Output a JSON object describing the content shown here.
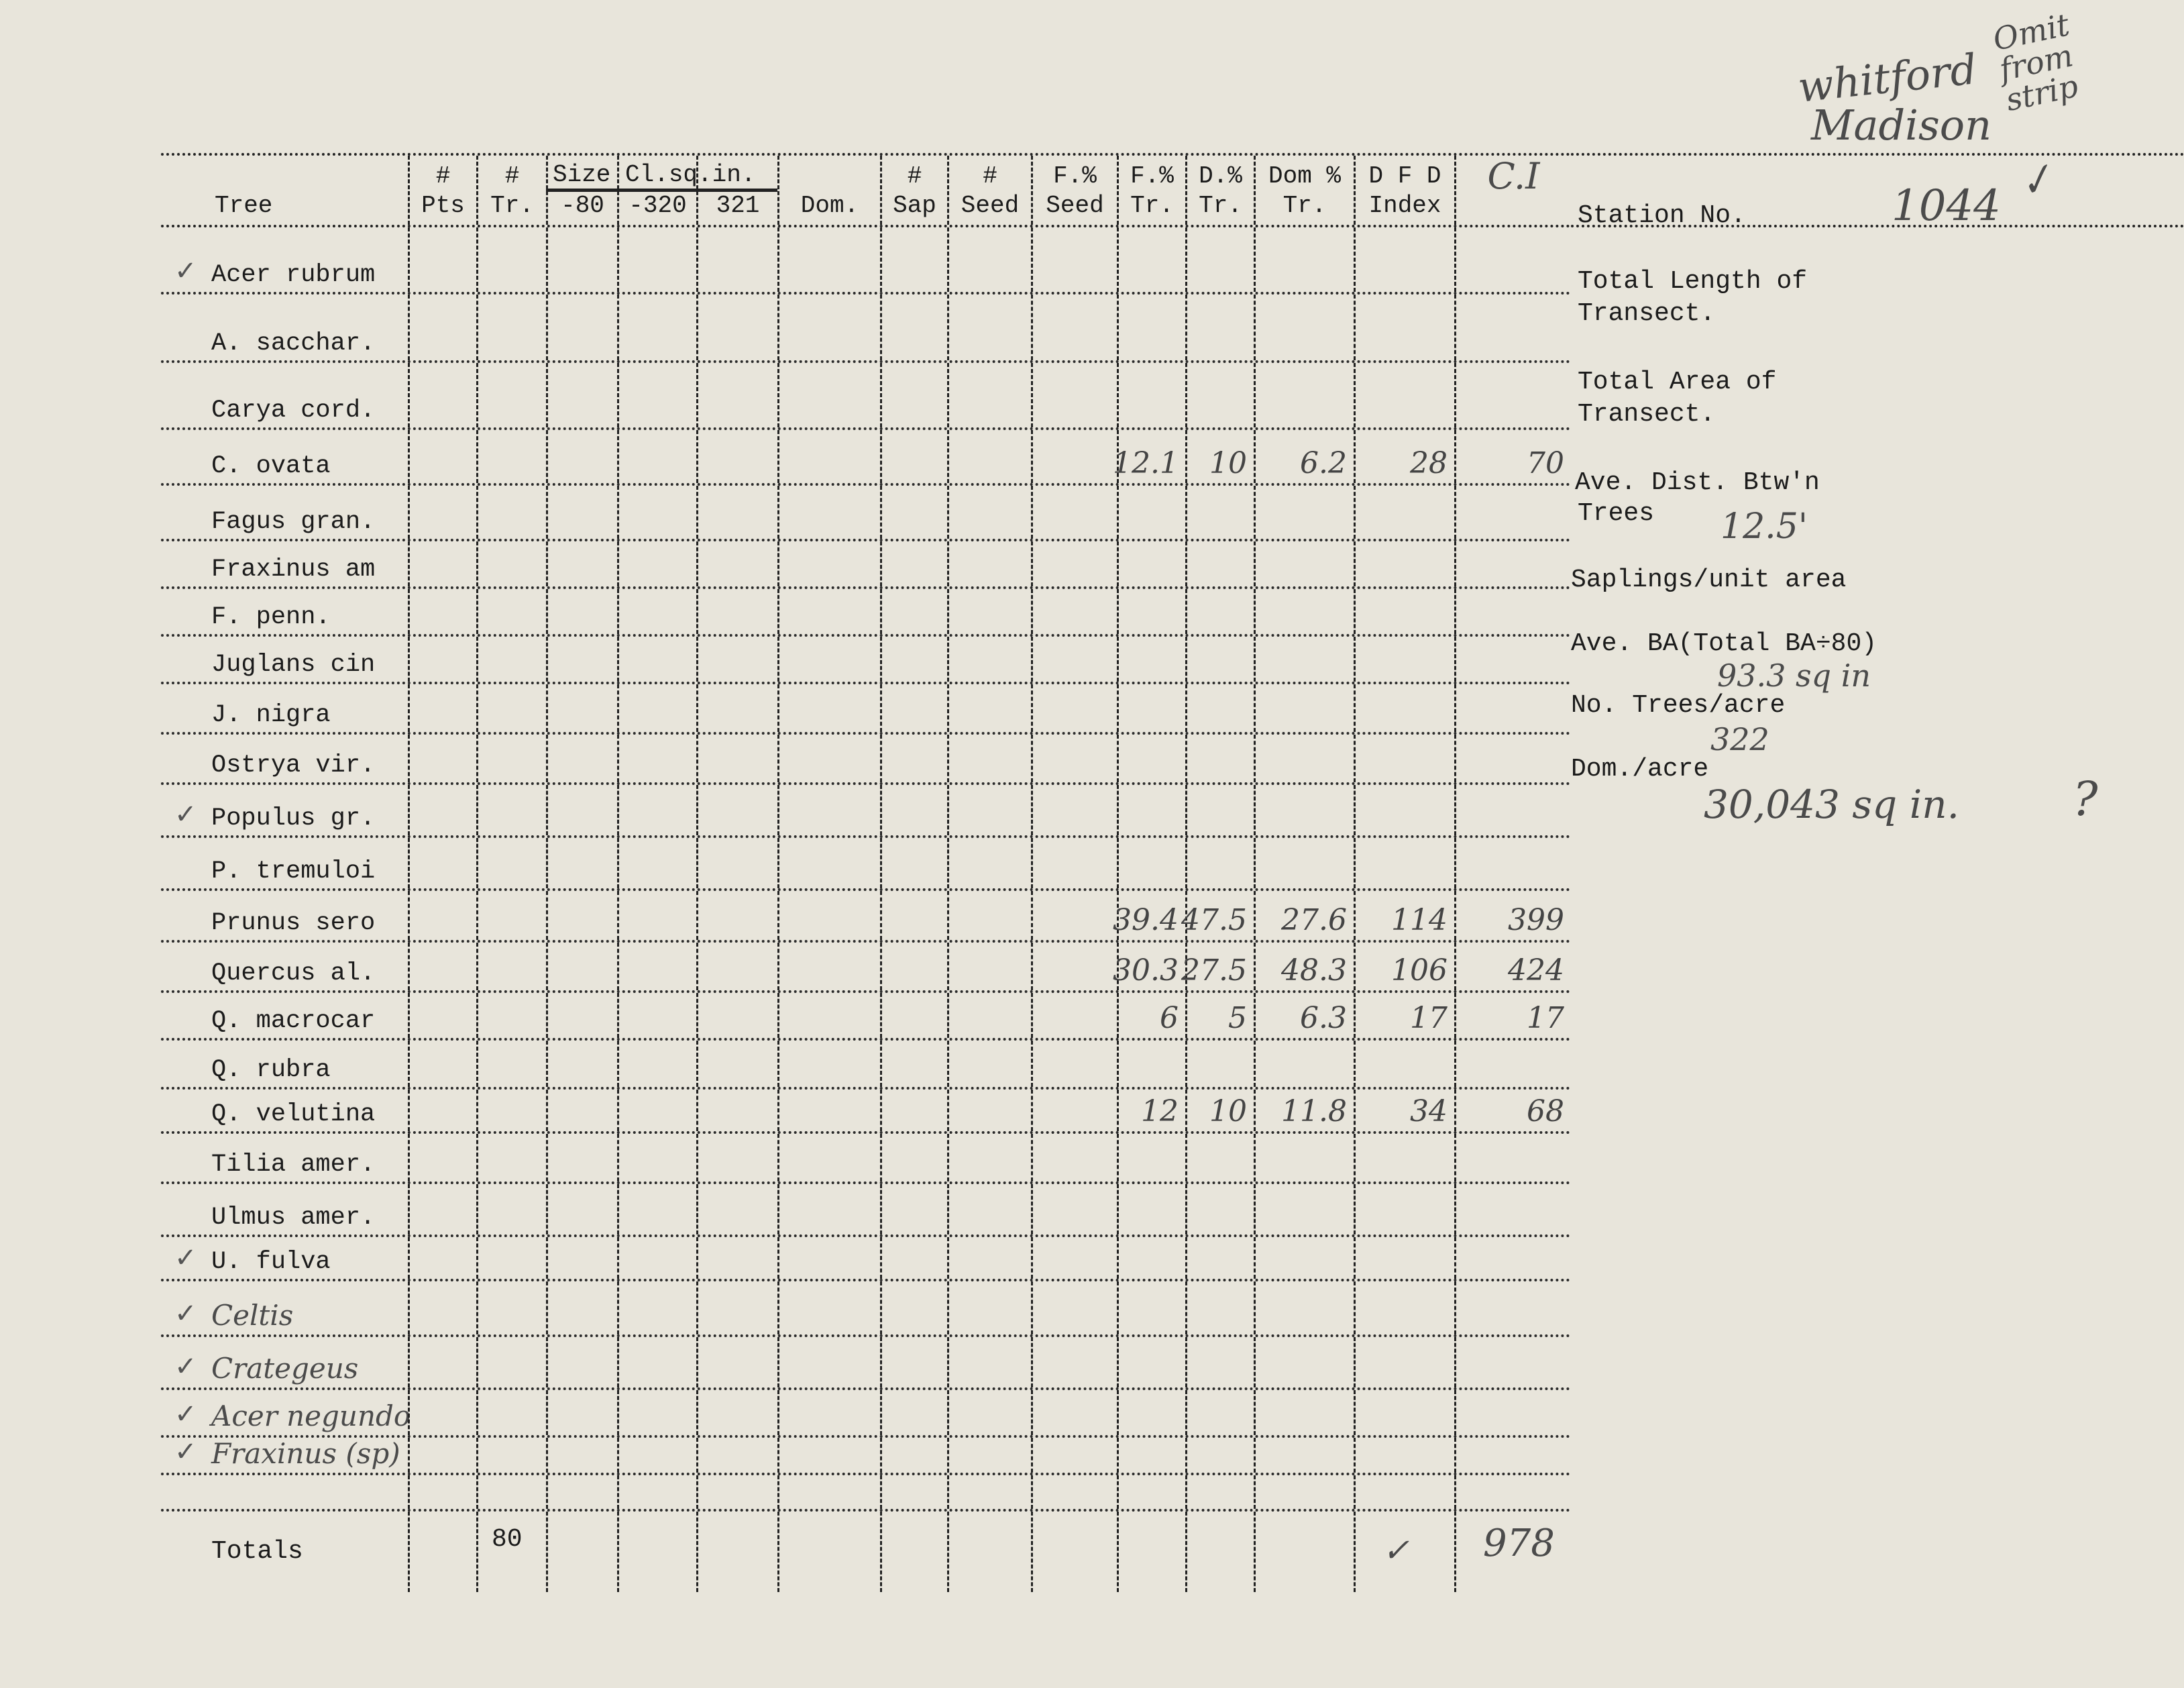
{
  "header_notes": {
    "location_line1": "whitford",
    "location_line2": "Madison",
    "omit_note": "Omit from strip"
  },
  "columns": [
    {
      "key": "tree",
      "line1": "",
      "line2": "Tree"
    },
    {
      "key": "pts",
      "line1": "#",
      "line2": "Pts"
    },
    {
      "key": "tr",
      "line1": "#",
      "line2": "Tr."
    },
    {
      "key": "size80",
      "line1": "",
      "line2": "-80"
    },
    {
      "key": "size320",
      "line1": "",
      "line2": "-320"
    },
    {
      "key": "size321",
      "line1": "",
      "line2": "321"
    },
    {
      "key": "dom",
      "line1": "",
      "line2": "Dom."
    },
    {
      "key": "sap",
      "line1": "#",
      "line2": "Sap"
    },
    {
      "key": "seed",
      "line1": "#",
      "line2": "Seed"
    },
    {
      "key": "fseed",
      "line1": "F.%",
      "line2": "Seed"
    },
    {
      "key": "ftr",
      "line1": "F.%",
      "line2": "Tr."
    },
    {
      "key": "dtr",
      "line1": "D.%",
      "line2": "Tr."
    },
    {
      "key": "domtr",
      "line1": "Dom %",
      "line2": "Tr."
    },
    {
      "key": "dfd",
      "line1": "D F D",
      "line2": "Index"
    },
    {
      "key": "ci",
      "line1": "C.I",
      "line2": ""
    }
  ],
  "size_class_label": "Size Cl.sq.in.",
  "rows": [
    {
      "tree": "Acer rubrum",
      "checked": true
    },
    {
      "tree": "A. sacchar."
    },
    {
      "tree": "Carya cord."
    },
    {
      "tree": "C. ovata",
      "ftr": "12.1",
      "dtr": "10",
      "domtr": "6.2",
      "dfd": "28",
      "ci": "70"
    },
    {
      "tree": "Fagus gran."
    },
    {
      "tree": "Fraxinus am"
    },
    {
      "tree": "F. penn."
    },
    {
      "tree": "Juglans cin"
    },
    {
      "tree": "J. nigra"
    },
    {
      "tree": "Ostrya vir."
    },
    {
      "tree": "Populus gr.",
      "checked": true
    },
    {
      "tree": "P. tremuloi"
    },
    {
      "tree": "Prunus sero",
      "ftr": "39.4",
      "dtr": "47.5",
      "domtr": "27.6",
      "dfd": "114",
      "ci": "399"
    },
    {
      "tree": "Quercus al.",
      "ftr": "30.3",
      "dtr": "27.5",
      "domtr": "48.3",
      "dfd": "106",
      "ci": "424"
    },
    {
      "tree": "Q. macrocar",
      "ftr": "6",
      "dtr": "5",
      "domtr": "6.3",
      "dfd": "17",
      "ci": "17"
    },
    {
      "tree": "Q. rubra"
    },
    {
      "tree": "Q. velutina",
      "ftr": "12",
      "dtr": "10",
      "domtr": "11.8",
      "dfd": "34",
      "ci": "68"
    },
    {
      "tree": "Tilia amer."
    },
    {
      "tree": "Ulmus amer."
    },
    {
      "tree": "U. fulva",
      "checked": true
    },
    {
      "tree": "Celtis",
      "checked": true,
      "handwritten": true
    },
    {
      "tree": "Crategeus",
      "checked": true,
      "handwritten": true
    },
    {
      "tree": "Acer negundo",
      "checked": true,
      "handwritten": true
    },
    {
      "tree": "Fraxinus (sp)",
      "checked": true,
      "handwritten": true
    },
    {
      "tree": ""
    }
  ],
  "totals": {
    "label": "Totals",
    "tr": "80",
    "dfd_check": "✓",
    "ci": "978"
  },
  "summary": {
    "station_label": "Station No.",
    "station_value": "1044",
    "total_length_label_1": "Total Length of",
    "total_length_label_2": "Transect.",
    "total_area_label_1": "Total Area of",
    "total_area_label_2": "Transect.",
    "ave_dist_label_1": "Ave. Dist. Btw'n",
    "ave_dist_label_2": "Trees",
    "ave_dist_value": "12.5'",
    "saplings_label": "Saplings/unit area",
    "ave_ba_label": "Ave. BA(Total BA÷80)",
    "ave_ba_value": "93.3 sq in",
    "trees_acre_label": "No. Trees/acre",
    "trees_acre_value": "322",
    "dom_acre_label": "Dom./acre",
    "dom_acre_value": "30,043 sq in.",
    "dom_acre_query": "?"
  },
  "colors": {
    "paper": "#e8e5db",
    "ink": "#1b1b1b",
    "pencil": "#4b4b4b"
  }
}
